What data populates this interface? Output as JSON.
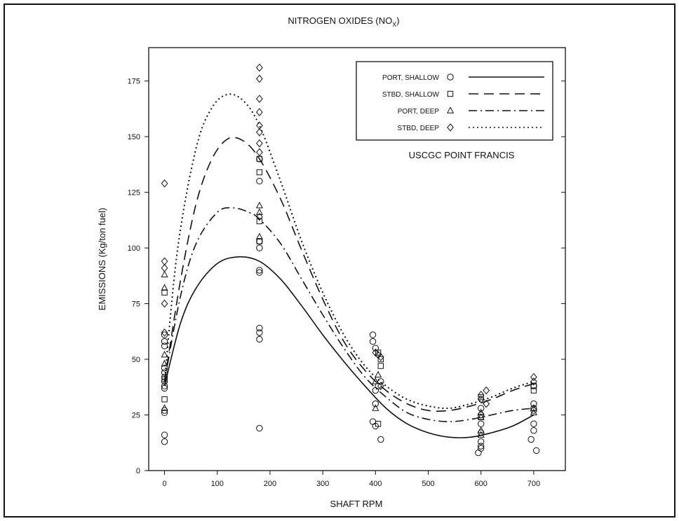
{
  "chart_data": {
    "type": "scatter",
    "title": "NITROGEN OXIDES (NO",
    "title_subscript": "X",
    "title_close": ")",
    "xlabel": "SHAFT RPM",
    "ylabel": "EMISSIONS (Kg/ton fuel)",
    "annotation": "USCGC POINT FRANCIS",
    "xlim": [
      -30,
      760
    ],
    "ylim": [
      0,
      190
    ],
    "xticks": [
      0,
      100,
      200,
      300,
      400,
      500,
      600,
      700
    ],
    "yticks": [
      0,
      25,
      50,
      75,
      100,
      125,
      150,
      175
    ],
    "grid": false,
    "legend_position": "top-right",
    "series": [
      {
        "name": "PORT, SHALLOW",
        "marker": "circle",
        "line": "solid",
        "points": [
          [
            0,
            13
          ],
          [
            0,
            16
          ],
          [
            0,
            26
          ],
          [
            0,
            27
          ],
          [
            0,
            37
          ],
          [
            0,
            38
          ],
          [
            0,
            40
          ],
          [
            0,
            42
          ],
          [
            0,
            44
          ],
          [
            0,
            46
          ],
          [
            0,
            56
          ],
          [
            0,
            58
          ],
          [
            0,
            61
          ],
          [
            180,
            19
          ],
          [
            180,
            59
          ],
          [
            180,
            62
          ],
          [
            180,
            64
          ],
          [
            180,
            89
          ],
          [
            180,
            90
          ],
          [
            180,
            100
          ],
          [
            180,
            103
          ],
          [
            180,
            130
          ],
          [
            180,
            140
          ],
          [
            395,
            22
          ],
          [
            400,
            20
          ],
          [
            400,
            30
          ],
          [
            400,
            36
          ],
          [
            405,
            38
          ],
          [
            410,
            14
          ],
          [
            410,
            40
          ],
          [
            400,
            55
          ],
          [
            395,
            58
          ],
          [
            395,
            61
          ],
          [
            595,
            8
          ],
          [
            600,
            10
          ],
          [
            600,
            11
          ],
          [
            600,
            13
          ],
          [
            600,
            17
          ],
          [
            600,
            21
          ],
          [
            600,
            25
          ],
          [
            600,
            28
          ],
          [
            695,
            14
          ],
          [
            700,
            18
          ],
          [
            700,
            21
          ],
          [
            705,
            9
          ],
          [
            700,
            27
          ],
          [
            700,
            28
          ],
          [
            700,
            30
          ],
          [
            700,
            38
          ]
        ],
        "curve": [
          [
            0,
            38
          ],
          [
            30,
            66
          ],
          [
            60,
            82
          ],
          [
            100,
            93
          ],
          [
            140,
            96
          ],
          [
            180,
            94
          ],
          [
            220,
            86
          ],
          [
            260,
            74
          ],
          [
            300,
            61
          ],
          [
            340,
            49
          ],
          [
            380,
            38
          ],
          [
            420,
            28
          ],
          [
            460,
            21
          ],
          [
            500,
            17
          ],
          [
            540,
            15
          ],
          [
            580,
            15
          ],
          [
            620,
            17
          ],
          [
            660,
            20
          ],
          [
            700,
            25
          ]
        ]
      },
      {
        "name": "STBD, SHALLOW",
        "marker": "square",
        "line": "dashed",
        "points": [
          [
            0,
            80
          ],
          [
            0,
            32
          ],
          [
            0,
            41
          ],
          [
            180,
            134
          ],
          [
            180,
            140
          ],
          [
            180,
            103
          ],
          [
            180,
            112
          ],
          [
            405,
            21
          ],
          [
            410,
            47
          ],
          [
            410,
            50
          ],
          [
            405,
            53
          ],
          [
            600,
            24
          ],
          [
            600,
            33
          ],
          [
            700,
            36
          ],
          [
            700,
            38
          ]
        ],
        "curve": [
          [
            0,
            40
          ],
          [
            30,
            85
          ],
          [
            60,
            120
          ],
          [
            90,
            140
          ],
          [
            120,
            149
          ],
          [
            150,
            148
          ],
          [
            180,
            140
          ],
          [
            220,
            122
          ],
          [
            260,
            99
          ],
          [
            300,
            77
          ],
          [
            340,
            58
          ],
          [
            380,
            45
          ],
          [
            420,
            36
          ],
          [
            460,
            30
          ],
          [
            500,
            27
          ],
          [
            540,
            27
          ],
          [
            580,
            29
          ],
          [
            620,
            32
          ],
          [
            660,
            36
          ],
          [
            700,
            39
          ]
        ]
      },
      {
        "name": "PORT, DEEP",
        "marker": "triangle",
        "line": "dashdot",
        "points": [
          [
            0,
            28
          ],
          [
            0,
            48
          ],
          [
            0,
            52
          ],
          [
            0,
            82
          ],
          [
            0,
            88
          ],
          [
            180,
            105
          ],
          [
            180,
            116
          ],
          [
            180,
            119
          ],
          [
            400,
            28
          ],
          [
            400,
            40
          ],
          [
            405,
            43
          ],
          [
            600,
            16
          ],
          [
            600,
            18
          ],
          [
            600,
            24
          ],
          [
            600,
            26
          ],
          [
            700,
            26
          ],
          [
            700,
            28
          ]
        ],
        "curve": [
          [
            0,
            40
          ],
          [
            30,
            78
          ],
          [
            60,
            102
          ],
          [
            100,
            116
          ],
          [
            130,
            118
          ],
          [
            160,
            116
          ],
          [
            180,
            113
          ],
          [
            220,
            102
          ],
          [
            260,
            86
          ],
          [
            300,
            70
          ],
          [
            340,
            55
          ],
          [
            380,
            42
          ],
          [
            420,
            33
          ],
          [
            460,
            26
          ],
          [
            500,
            23
          ],
          [
            540,
            22
          ],
          [
            580,
            23
          ],
          [
            620,
            25
          ],
          [
            660,
            27
          ],
          [
            700,
            28
          ]
        ]
      },
      {
        "name": "STBD, DEEP",
        "marker": "diamond",
        "line": "dashed",
        "points": [
          [
            0,
            129
          ],
          [
            0,
            94
          ],
          [
            0,
            91
          ],
          [
            0,
            75
          ],
          [
            0,
            62
          ],
          [
            180,
            181
          ],
          [
            180,
            176
          ],
          [
            180,
            167
          ],
          [
            180,
            161
          ],
          [
            180,
            155
          ],
          [
            180,
            152
          ],
          [
            180,
            147
          ],
          [
            180,
            143
          ],
          [
            180,
            114
          ],
          [
            400,
            53
          ],
          [
            405,
            52
          ],
          [
            410,
            51
          ],
          [
            410,
            38
          ],
          [
            600,
            32
          ],
          [
            600,
            34
          ],
          [
            610,
            36
          ],
          [
            610,
            30
          ],
          [
            700,
            40
          ],
          [
            700,
            42
          ]
        ],
        "curve": [
          [
            0,
            40
          ],
          [
            25,
            100
          ],
          [
            60,
            145
          ],
          [
            90,
            163
          ],
          [
            120,
            169
          ],
          [
            150,
            166
          ],
          [
            180,
            155
          ],
          [
            220,
            130
          ],
          [
            260,
            103
          ],
          [
            300,
            80
          ],
          [
            340,
            61
          ],
          [
            380,
            47
          ],
          [
            420,
            38
          ],
          [
            460,
            32
          ],
          [
            500,
            29
          ],
          [
            540,
            28
          ],
          [
            580,
            30
          ],
          [
            620,
            33
          ],
          [
            660,
            37
          ],
          [
            700,
            40
          ]
        ]
      }
    ]
  }
}
